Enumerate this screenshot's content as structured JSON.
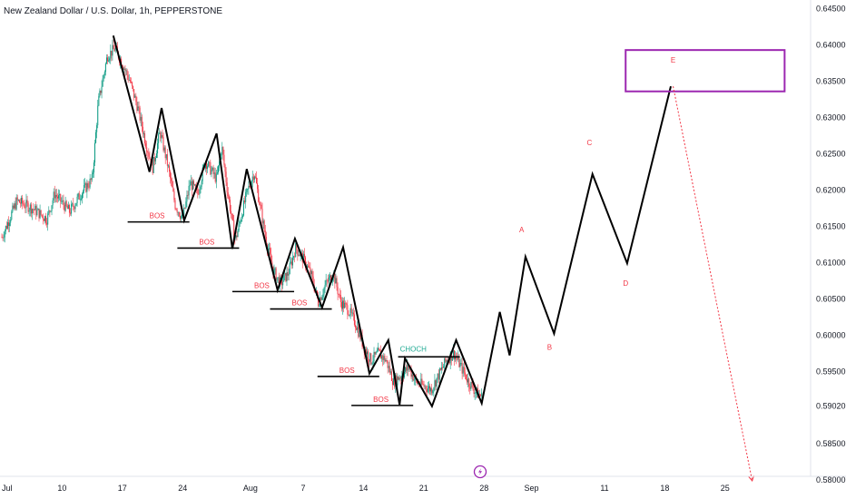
{
  "chart_data": {
    "type": "candlestick",
    "title": "New Zealand Dollar / U.S. Dollar, 1h, PEPPERSTONE",
    "ylim": [
      0.5774,
      0.6462
    ],
    "y_ticks": [
      "0.64500",
      "0.64000",
      "0.63500",
      "0.63000",
      "0.62500",
      "0.62000",
      "0.61500",
      "0.61000",
      "0.60500",
      "0.60000",
      "0.59500",
      "0.59020",
      "0.58500",
      "0.58000"
    ],
    "x_ticks": [
      {
        "label": "Jul",
        "x": 0
      },
      {
        "label": "10",
        "x": 8
      },
      {
        "label": "17",
        "x": 16
      },
      {
        "label": "24",
        "x": 24
      },
      {
        "label": "Aug",
        "x": 33
      },
      {
        "label": "7",
        "x": 40
      },
      {
        "label": "14",
        "x": 48
      },
      {
        "label": "21",
        "x": 56
      },
      {
        "label": "28",
        "x": 64
      },
      {
        "label": "Sep",
        "x": 70.3
      },
      {
        "label": "11",
        "x": 80
      },
      {
        "label": "18",
        "x": 88
      },
      {
        "label": "25",
        "x": 96
      }
    ],
    "price_anchors": [
      [
        0,
        0.6135
      ],
      [
        2,
        0.6185
      ],
      [
        4,
        0.6175
      ],
      [
        6,
        0.616
      ],
      [
        7,
        0.6195
      ],
      [
        9,
        0.617
      ],
      [
        10.5,
        0.6195
      ],
      [
        12,
        0.6215
      ],
      [
        12.8,
        0.632
      ],
      [
        14,
        0.6385
      ],
      [
        15,
        0.6395
      ],
      [
        16,
        0.6375
      ],
      [
        17,
        0.635
      ],
      [
        18,
        0.6315
      ],
      [
        19,
        0.627
      ],
      [
        20,
        0.623
      ],
      [
        21,
        0.628
      ],
      [
        22,
        0.6235
      ],
      [
        23,
        0.618
      ],
      [
        24,
        0.616
      ],
      [
        25,
        0.621
      ],
      [
        26,
        0.6195
      ],
      [
        27,
        0.624
      ],
      [
        28.5,
        0.6215
      ],
      [
        29.2,
        0.626
      ],
      [
        30,
        0.6195
      ],
      [
        31,
        0.613
      ],
      [
        32.5,
        0.6195
      ],
      [
        33.5,
        0.6225
      ],
      [
        34,
        0.6195
      ],
      [
        35,
        0.6135
      ],
      [
        36,
        0.609
      ],
      [
        37,
        0.607
      ],
      [
        38,
        0.6085
      ],
      [
        39,
        0.612
      ],
      [
        40,
        0.6105
      ],
      [
        41,
        0.6085
      ],
      [
        42,
        0.6045
      ],
      [
        43,
        0.607
      ],
      [
        44,
        0.6085
      ],
      [
        45,
        0.6045
      ],
      [
        46,
        0.6035
      ],
      [
        47,
        0.6015
      ],
      [
        48,
        0.5985
      ],
      [
        49,
        0.5965
      ],
      [
        50,
        0.5975
      ],
      [
        51,
        0.5965
      ],
      [
        52,
        0.5935
      ],
      [
        53,
        0.5945
      ],
      [
        54,
        0.5955
      ],
      [
        55,
        0.5935
      ],
      [
        56,
        0.593
      ],
      [
        57,
        0.5925
      ],
      [
        58,
        0.5945
      ],
      [
        59,
        0.5965
      ],
      [
        60,
        0.5975
      ],
      [
        61,
        0.5955
      ],
      [
        62,
        0.5935
      ],
      [
        63,
        0.592
      ],
      [
        63.8,
        0.5915
      ]
    ],
    "zigzag": [
      [
        14.8,
        0.6413
      ],
      [
        19.6,
        0.6225
      ],
      [
        21.2,
        0.6313
      ],
      [
        24.2,
        0.6158
      ],
      [
        28.5,
        0.6278
      ],
      [
        30.6,
        0.6119
      ],
      [
        32.5,
        0.6229
      ],
      [
        36.6,
        0.6062
      ],
      [
        38.9,
        0.6133
      ],
      [
        42.5,
        0.6038
      ],
      [
        45.3,
        0.6121
      ],
      [
        48.8,
        0.5947
      ],
      [
        51.3,
        0.5993
      ],
      [
        52.8,
        0.5904
      ],
      [
        53.5,
        0.5968
      ],
      [
        57.1,
        0.5902
      ],
      [
        60.3,
        0.5993
      ],
      [
        63.7,
        0.5906
      ],
      [
        66.1,
        0.6032
      ],
      [
        67.4,
        0.5972
      ],
      [
        69.5,
        0.6108
      ],
      [
        73.3,
        0.6002
      ],
      [
        78.4,
        0.6222
      ],
      [
        83.0,
        0.6099
      ],
      [
        88.8,
        0.6343
      ]
    ],
    "bos_lines": [
      {
        "label": "BOS",
        "x1": 16.7,
        "x2": 24.9,
        "y": 0.6156
      },
      {
        "label": "BOS",
        "x1": 23.3,
        "x2": 31.5,
        "y": 0.612
      },
      {
        "label": "BOS",
        "x1": 30.6,
        "x2": 38.8,
        "y": 0.606
      },
      {
        "label": "BOS",
        "x1": 35.6,
        "x2": 43.8,
        "y": 0.6036
      },
      {
        "label": "BOS",
        "x1": 41.9,
        "x2": 50.1,
        "y": 0.5943
      },
      {
        "label": "BOS",
        "x1": 46.4,
        "x2": 54.6,
        "y": 0.5903
      }
    ],
    "choch": {
      "label": "CHOCH",
      "x1": 52.6,
      "x2": 60.8,
      "y": 0.597
    },
    "wave_labels": [
      {
        "label": "A",
        "x": 69.0,
        "y": 0.6142
      },
      {
        "label": "B",
        "x": 72.7,
        "y": 0.598
      },
      {
        "label": "C",
        "x": 78.0,
        "y": 0.6262
      },
      {
        "label": "D",
        "x": 82.8,
        "y": 0.6068
      },
      {
        "label": "E",
        "x": 89.1,
        "y": 0.6376
      }
    ],
    "target_box": {
      "x1": 82.8,
      "x2": 103.9,
      "y_top": 0.6393,
      "y_bottom": 0.6336
    },
    "projection": {
      "x1": 89.1,
      "y1": 0.6343,
      "x2": 99.6,
      "y2": 0.5799
    },
    "colors": {
      "up": "#089981",
      "down": "#f23645",
      "line": "#000000",
      "label": "#f23645",
      "choch": "#22ab94",
      "box": "#9c27b0",
      "projection": "#f23645"
    }
  },
  "footer_icon": "lightning-icon"
}
